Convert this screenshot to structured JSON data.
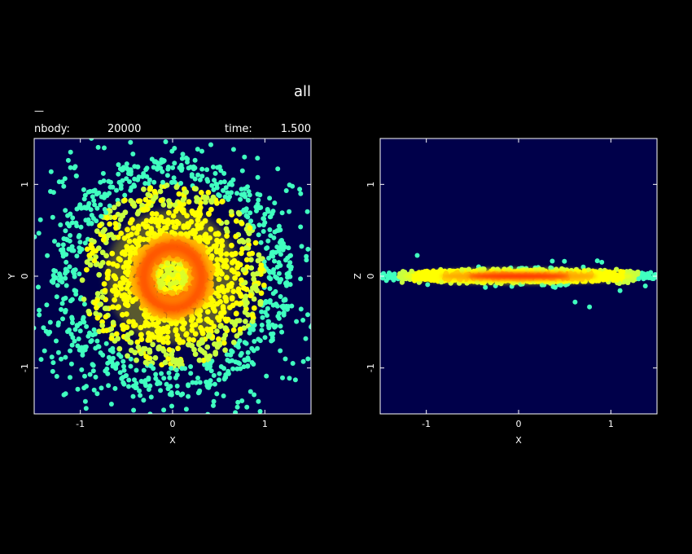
{
  "header": {
    "title": "all",
    "dash": "—",
    "nbody_label": "nbody:",
    "nbody_value": "20000",
    "time_label": "time:",
    "time_value": "1.500"
  },
  "colors": {
    "background": "#000000",
    "panel_background": "#00004a",
    "frame": "#ffffff",
    "colormap": [
      "#40ffc0",
      "#c8ff40",
      "#ffff00",
      "#ffa000",
      "#ff2a00"
    ]
  },
  "chart_data": [
    {
      "type": "scatter",
      "view": "face-on density",
      "xlabel": "X",
      "ylabel": "Y",
      "xlim": [
        -1.5,
        1.5
      ],
      "ylim": [
        -1.5,
        1.5
      ],
      "xticks": [
        -1,
        0,
        1
      ],
      "yticks": [
        -1,
        0,
        1
      ],
      "n_points": 20000,
      "features": {
        "ring_radius": 0.3,
        "ring_width": 0.1,
        "disk_extent": 1.3
      }
    },
    {
      "type": "scatter",
      "view": "edge-on density",
      "xlabel": "X",
      "ylabel": "Z",
      "xlim": [
        -1.5,
        1.5
      ],
      "ylim": [
        -1.5,
        1.5
      ],
      "xticks": [
        -1,
        0,
        1
      ],
      "yticks": [
        -1,
        0,
        1
      ],
      "n_points": 20000,
      "features": {
        "disk_half_thickness": 0.06,
        "disk_extent": 1.5
      }
    }
  ]
}
